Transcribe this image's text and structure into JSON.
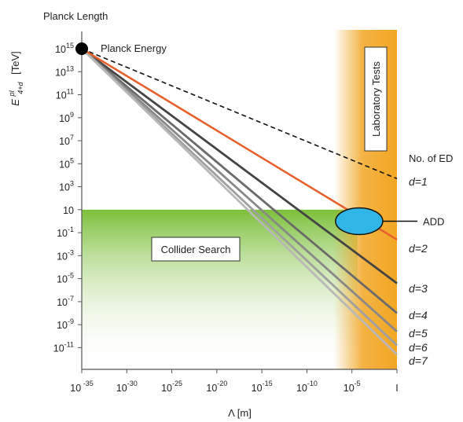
{
  "chart_data": {
    "type": "line",
    "title": "Planck Length",
    "ylabel": "E^{pl}_{4+d} [TeV]",
    "ylabel_main": "E",
    "ylabel_sup": "pl",
    "ylabel_sub": "4+d",
    "ylabel_unit": "[TeV]",
    "xlabel": "Λ  [m]",
    "x_scale": "log",
    "y_scale": "log",
    "xlim_exp": [
      -35,
      0
    ],
    "ylim_exp": [
      -12,
      15
    ],
    "x_ticks": [
      {
        "exp": -35,
        "base": "10",
        "sup": " -35"
      },
      {
        "exp": -30,
        "base": "10",
        "sup": "-30"
      },
      {
        "exp": -25,
        "base": "10",
        "sup": "-25"
      },
      {
        "exp": -20,
        "base": "10",
        "sup": "-20"
      },
      {
        "exp": -15,
        "base": "10",
        "sup": "-15"
      },
      {
        "exp": -10,
        "base": "10",
        "sup": "-10"
      },
      {
        "exp": -5,
        "base": "10",
        "sup": "-5"
      },
      {
        "exp": 0,
        "base": "I",
        "sup": ""
      }
    ],
    "y_ticks": [
      {
        "exp": 15,
        "base": "10",
        "sup": "15"
      },
      {
        "exp": 13,
        "base": "10",
        "sup": "13"
      },
      {
        "exp": 11,
        "base": "10",
        "sup": "11"
      },
      {
        "exp": 9,
        "base": "10",
        "sup": "9"
      },
      {
        "exp": 7,
        "base": "10",
        "sup": "7"
      },
      {
        "exp": 5,
        "base": "10",
        "sup": "5"
      },
      {
        "exp": 3,
        "base": "10",
        "sup": "3"
      },
      {
        "exp": 1,
        "base": "10",
        "sup": ""
      },
      {
        "exp": -1,
        "base": "10",
        "sup": "-1"
      },
      {
        "exp": -3,
        "base": "10",
        "sup": "-3"
      },
      {
        "exp": -5,
        "base": "10",
        "sup": "-5"
      },
      {
        "exp": -7,
        "base": "10",
        "sup": "-7"
      },
      {
        "exp": -9,
        "base": "10",
        "sup": "-9"
      },
      {
        "exp": -11,
        "base": "10",
        "sup": "-11"
      }
    ],
    "planck_point": {
      "x_exp": -35,
      "y_exp": 15,
      "label": "Planck Energy"
    },
    "series": [
      {
        "name": "d=1",
        "color": "#111111",
        "dash": true,
        "end_y_exp": 3.7
      },
      {
        "name": "d=2",
        "color": "#e8612c",
        "dash": false,
        "end_y_exp": -1.6
      },
      {
        "name": "d=3",
        "color": "#444444",
        "dash": false,
        "end_y_exp": -5.4
      },
      {
        "name": "d=4",
        "color": "#6a6a6a",
        "dash": false,
        "end_y_exp": -8.0
      },
      {
        "name": "d=5",
        "color": "#888888",
        "dash": false,
        "end_y_exp": -9.6
      },
      {
        "name": "d=6",
        "color": "#a0a0a0",
        "dash": false,
        "end_y_exp": -10.8
      },
      {
        "name": "d=7",
        "color": "#b8b8b8",
        "dash": false,
        "end_y_exp": -11.6
      }
    ],
    "series_labels": [
      "d=1",
      "d=2",
      "d=3",
      "d=4",
      "d=5",
      "d=6",
      "d=7"
    ],
    "legend_title": "No. of ED",
    "regions": {
      "collider_label": "Collider Search",
      "collider_top_exp": 1,
      "collider_color": "#7cbf3a",
      "lab_label": "Laboratory Tests",
      "lab_x_exp": [
        -7,
        0
      ],
      "lab_color": "#f2a623"
    },
    "add": {
      "label": "ADD",
      "x_exp": -4.2,
      "y_exp": 0,
      "color": "#2fb6e6"
    }
  }
}
